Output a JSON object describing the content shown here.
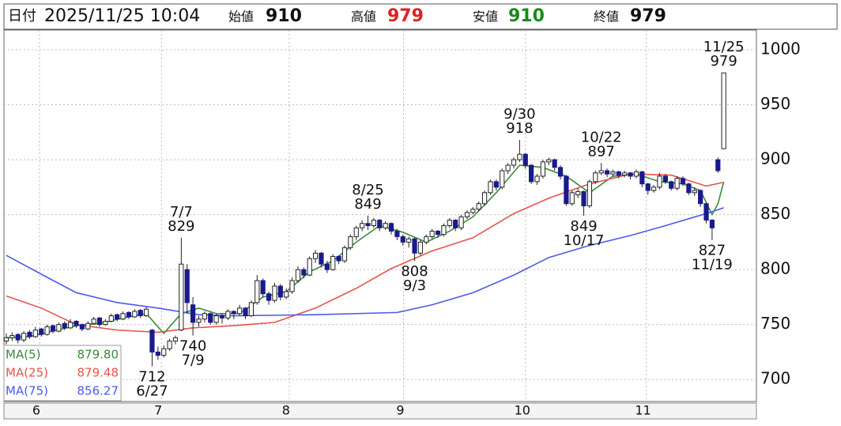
{
  "header": {
    "date_label": "日付",
    "date": "2025/11/25 10:04",
    "open_label": "始値",
    "open": 910,
    "high_label": "高値",
    "high": 979,
    "low_label": "安値",
    "low": 910,
    "close_label": "終値",
    "close": 979
  },
  "chart_data": {
    "type": "candlestick",
    "ylim": [
      680,
      1018
    ],
    "yticks": [
      700,
      750,
      800,
      850,
      900,
      950,
      1000
    ],
    "xlim": [
      -0.4,
      128.6
    ],
    "xticks": [
      {
        "value": 5.7,
        "label": "6"
      },
      {
        "value": 26.6,
        "label": "7"
      },
      {
        "value": 48.5,
        "label": "8"
      },
      {
        "value": 68.1,
        "label": "9"
      },
      {
        "value": 89,
        "label": "10"
      },
      {
        "value": 109.7,
        "label": "11"
      }
    ],
    "grid": true,
    "up_color": "#ffffff",
    "down_color": "#1a1a8c",
    "candles": [
      [
        735,
        742,
        732,
        738
      ],
      [
        738,
        743,
        735,
        740
      ],
      [
        741,
        742,
        733,
        736
      ],
      [
        736,
        744,
        734,
        742
      ],
      [
        743,
        745,
        737,
        739
      ],
      [
        739,
        748,
        738,
        745
      ],
      [
        746,
        747,
        739,
        741
      ],
      [
        741,
        750,
        740,
        748
      ],
      [
        749,
        750,
        742,
        744
      ],
      [
        744,
        752,
        743,
        750
      ],
      [
        751,
        753,
        745,
        747
      ],
      [
        747,
        755,
        746,
        752
      ],
      [
        753,
        754,
        747,
        749
      ],
      [
        750,
        751,
        744,
        746
      ],
      [
        746,
        753,
        745,
        751
      ],
      [
        751,
        757,
        750,
        755
      ],
      [
        756,
        757,
        748,
        750
      ],
      [
        750,
        755,
        749,
        753
      ],
      [
        753,
        760,
        752,
        758
      ],
      [
        759,
        760,
        753,
        755
      ],
      [
        755,
        762,
        754,
        760
      ],
      [
        761,
        762,
        755,
        757
      ],
      [
        757,
        764,
        756,
        762
      ],
      [
        763,
        764,
        756,
        758
      ],
      [
        758,
        766,
        757,
        764
      ],
      [
        745,
        746,
        712,
        725
      ],
      [
        725,
        730,
        718,
        722
      ],
      [
        722,
        731,
        720,
        728
      ],
      [
        728,
        737,
        726,
        735
      ],
      [
        735,
        740,
        732,
        738
      ],
      [
        745,
        829,
        744,
        805
      ],
      [
        800,
        805,
        760,
        770
      ],
      [
        768,
        775,
        740,
        752
      ],
      [
        752,
        758,
        748,
        755
      ],
      [
        755,
        762,
        752,
        760
      ],
      [
        760,
        761,
        750,
        752
      ],
      [
        752,
        760,
        750,
        758
      ],
      [
        758,
        760,
        751,
        756
      ],
      [
        756,
        764,
        754,
        762
      ],
      [
        762,
        763,
        755,
        760
      ],
      [
        760,
        768,
        758,
        765
      ],
      [
        765,
        766,
        755,
        758
      ],
      [
        758,
        772,
        757,
        770
      ],
      [
        770,
        795,
        768,
        790
      ],
      [
        790,
        792,
        775,
        778
      ],
      [
        778,
        780,
        768,
        772
      ],
      [
        772,
        788,
        770,
        785
      ],
      [
        785,
        787,
        772,
        775
      ],
      [
        775,
        783,
        773,
        780
      ],
      [
        780,
        793,
        778,
        790
      ],
      [
        790,
        803,
        788,
        800
      ],
      [
        800,
        802,
        792,
        795
      ],
      [
        795,
        812,
        794,
        810
      ],
      [
        810,
        818,
        806,
        815
      ],
      [
        815,
        816,
        802,
        805
      ],
      [
        805,
        808,
        797,
        800
      ],
      [
        800,
        814,
        799,
        812
      ],
      [
        812,
        813,
        805,
        808
      ],
      [
        808,
        822,
        806,
        820
      ],
      [
        820,
        832,
        818,
        830
      ],
      [
        830,
        840,
        827,
        838
      ],
      [
        838,
        845,
        835,
        842
      ],
      [
        842,
        849,
        836,
        840
      ],
      [
        840,
        847,
        838,
        845
      ],
      [
        845,
        846,
        835,
        838
      ],
      [
        838,
        844,
        836,
        842
      ],
      [
        842,
        843,
        832,
        835
      ],
      [
        835,
        837,
        827,
        830
      ],
      [
        830,
        832,
        822,
        825
      ],
      [
        825,
        830,
        820,
        828
      ],
      [
        828,
        829,
        808,
        815
      ],
      [
        815,
        827,
        813,
        825
      ],
      [
        825,
        832,
        823,
        830
      ],
      [
        830,
        837,
        828,
        835
      ],
      [
        835,
        836,
        829,
        832
      ],
      [
        832,
        842,
        830,
        840
      ],
      [
        840,
        847,
        838,
        845
      ],
      [
        845,
        846,
        835,
        838
      ],
      [
        838,
        850,
        836,
        848
      ],
      [
        848,
        854,
        846,
        852
      ],
      [
        852,
        857,
        850,
        855
      ],
      [
        855,
        862,
        853,
        860
      ],
      [
        860,
        872,
        858,
        870
      ],
      [
        870,
        882,
        868,
        880
      ],
      [
        880,
        882,
        872,
        875
      ],
      [
        875,
        892,
        873,
        890
      ],
      [
        890,
        897,
        887,
        895
      ],
      [
        895,
        902,
        892,
        900
      ],
      [
        900,
        918,
        898,
        905
      ],
      [
        905,
        906,
        892,
        895
      ],
      [
        895,
        896,
        878,
        880
      ],
      [
        880,
        887,
        877,
        885
      ],
      [
        885,
        900,
        883,
        898
      ],
      [
        898,
        902,
        895,
        900
      ],
      [
        900,
        901,
        890,
        893
      ],
      [
        893,
        895,
        882,
        885
      ],
      [
        885,
        886,
        858,
        860
      ],
      [
        860,
        872,
        858,
        870
      ],
      [
        868,
        874,
        865,
        871
      ],
      [
        871,
        872,
        849,
        858
      ],
      [
        858,
        882,
        856,
        880
      ],
      [
        880,
        890,
        878,
        888
      ],
      [
        888,
        897,
        886,
        890
      ],
      [
        890,
        892,
        884,
        887
      ],
      [
        887,
        891,
        885,
        889
      ],
      [
        889,
        890,
        883,
        886
      ],
      [
        886,
        890,
        884,
        888
      ],
      [
        888,
        889,
        882,
        885
      ],
      [
        885,
        891,
        883,
        889
      ],
      [
        889,
        890,
        875,
        878
      ],
      [
        878,
        879,
        868,
        872
      ],
      [
        872,
        877,
        870,
        875
      ],
      [
        875,
        888,
        873,
        885
      ],
      [
        885,
        887,
        878,
        880
      ],
      [
        880,
        881,
        872,
        874
      ],
      [
        874,
        885,
        872,
        883
      ],
      [
        883,
        885,
        876,
        878
      ],
      [
        878,
        879,
        868,
        870
      ],
      [
        870,
        875,
        867,
        872
      ],
      [
        872,
        873,
        857,
        860
      ],
      [
        860,
        861,
        842,
        845
      ],
      [
        845,
        846,
        827,
        838
      ],
      [
        900,
        902,
        888,
        890
      ],
      [
        910,
        979,
        910,
        979
      ]
    ],
    "series": [
      {
        "name": "MA(5)",
        "color": "#3a8a3a",
        "last_label": "879.80",
        "x": [
          0,
          4,
          8,
          12,
          16,
          20,
          24,
          27,
          30,
          33,
          36,
          40,
          44,
          48,
          52,
          56,
          60,
          64,
          68,
          72,
          76,
          80,
          84,
          88,
          92,
          96,
          100,
          104,
          108,
          112,
          116,
          119,
          121,
          122,
          123
        ],
        "values": [
          738,
          739,
          744,
          749,
          751,
          756,
          760,
          742,
          760,
          765,
          760,
          760,
          775,
          780,
          798,
          808,
          825,
          840,
          834,
          825,
          835,
          848,
          870,
          895,
          893,
          885,
          870,
          885,
          887,
          880,
          878,
          872,
          850,
          860,
          879.8
        ]
      },
      {
        "name": "MA(25)",
        "color": "#e8534a",
        "last_label": "879.48",
        "x": [
          0,
          6,
          12,
          19,
          26,
          32,
          39,
          46,
          53,
          60,
          66,
          73,
          80,
          87,
          93,
          100,
          107,
          114,
          120,
          123
        ],
        "values": [
          776,
          765,
          750,
          745,
          743,
          747,
          749,
          752,
          765,
          783,
          801,
          817,
          829,
          851,
          865,
          878,
          887,
          886,
          876,
          879.48
        ]
      },
      {
        "name": "MA(75)",
        "color": "#4b5be8",
        "last_label": "856.27",
        "x": [
          0,
          7,
          12,
          19,
          26,
          33,
          39,
          53,
          67,
          73,
          80,
          87,
          93,
          100,
          107,
          113,
          120,
          123
        ],
        "values": [
          813,
          793,
          779,
          770,
          765,
          759,
          758,
          759,
          761,
          768,
          779,
          795,
          811,
          822,
          831,
          840,
          851,
          856.27
        ]
      }
    ],
    "annotations": [
      {
        "date": "11/25",
        "value": 979,
        "x": 123,
        "position": "above"
      },
      {
        "date": "9/30",
        "value": 918,
        "x": 88,
        "position": "above"
      },
      {
        "date": "10/22",
        "value": 897,
        "x": 102,
        "position": "above"
      },
      {
        "date": "8/25",
        "value": 849,
        "x": 62,
        "position": "above"
      },
      {
        "date": "7/7",
        "value": 829,
        "x": 30,
        "position": "above"
      },
      {
        "date": "9/3",
        "value": 808,
        "x": 70,
        "position": "below"
      },
      {
        "date": "10/17",
        "value": 849,
        "x": 99,
        "position": "below"
      },
      {
        "date": "11/19",
        "value": 827,
        "x": 121,
        "position": "below"
      },
      {
        "date": "7/9",
        "value": 740,
        "x": 32,
        "position": "below"
      },
      {
        "date": "6/27",
        "value": 712,
        "x": 25,
        "position": "below"
      }
    ]
  }
}
